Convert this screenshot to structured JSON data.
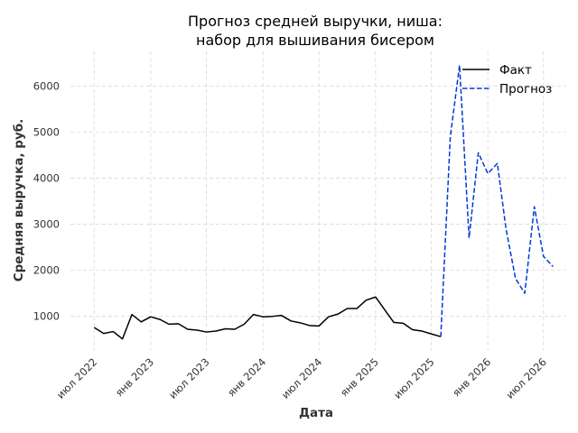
{
  "chart_data": {
    "type": "line",
    "title_line1": "Прогноз средней выручки, ниша:",
    "title_line2": "набор для вышивания бисером",
    "xlabel": "Дата",
    "ylabel": "Средняя выручка, руб.",
    "x_ticks": [
      {
        "date": "2022-07-01",
        "label": "июл 2022"
      },
      {
        "date": "2023-01-01",
        "label": "янв 2023"
      },
      {
        "date": "2023-07-01",
        "label": "июл 2023"
      },
      {
        "date": "2024-01-01",
        "label": "янв 2024"
      },
      {
        "date": "2024-07-01",
        "label": "июл 2024"
      },
      {
        "date": "2025-01-01",
        "label": "янв 2025"
      },
      {
        "date": "2025-07-01",
        "label": "июл 2025"
      },
      {
        "date": "2026-01-01",
        "label": "янв 2026"
      },
      {
        "date": "2026-07-01",
        "label": "июл 2026"
      }
    ],
    "y_ticks": [
      1000,
      2000,
      3000,
      4000,
      5000,
      6000
    ],
    "xlim": [
      "2022-04-15",
      "2026-09-10"
    ],
    "ylim": [
      250,
      6750
    ],
    "grid": true,
    "legend_position": "top-right",
    "series": [
      {
        "name": "Факт",
        "color": "#000000",
        "style": "solid",
        "points": [
          [
            "2022-07-01",
            760
          ],
          [
            "2022-08-01",
            630
          ],
          [
            "2022-09-01",
            670
          ],
          [
            "2022-10-01",
            510
          ],
          [
            "2022-11-01",
            1040
          ],
          [
            "2022-12-01",
            880
          ],
          [
            "2023-01-01",
            990
          ],
          [
            "2023-02-01",
            930
          ],
          [
            "2023-03-01",
            830
          ],
          [
            "2023-04-01",
            840
          ],
          [
            "2023-05-01",
            720
          ],
          [
            "2023-06-01",
            700
          ],
          [
            "2023-07-01",
            660
          ],
          [
            "2023-08-01",
            680
          ],
          [
            "2023-09-01",
            730
          ],
          [
            "2023-10-01",
            720
          ],
          [
            "2023-11-01",
            830
          ],
          [
            "2023-12-01",
            1040
          ],
          [
            "2024-01-01",
            990
          ],
          [
            "2024-02-01",
            1000
          ],
          [
            "2024-03-01",
            1020
          ],
          [
            "2024-04-01",
            900
          ],
          [
            "2024-05-01",
            860
          ],
          [
            "2024-06-01",
            800
          ],
          [
            "2024-07-01",
            790
          ],
          [
            "2024-08-01",
            990
          ],
          [
            "2024-09-01",
            1050
          ],
          [
            "2024-10-01",
            1170
          ],
          [
            "2024-11-01",
            1170
          ],
          [
            "2024-12-01",
            1350
          ],
          [
            "2025-01-01",
            1420
          ],
          [
            "2025-02-01",
            1130
          ],
          [
            "2025-03-01",
            870
          ],
          [
            "2025-04-01",
            850
          ],
          [
            "2025-05-01",
            710
          ],
          [
            "2025-06-01",
            680
          ],
          [
            "2025-07-01",
            620
          ],
          [
            "2025-08-01",
            560
          ]
        ]
      },
      {
        "name": "Прогноз",
        "color": "#0039d6",
        "style": "dashed",
        "points": [
          [
            "2025-08-01",
            560
          ],
          [
            "2025-09-01",
            4900
          ],
          [
            "2025-10-01",
            6450
          ],
          [
            "2025-11-01",
            2700
          ],
          [
            "2025-12-01",
            4550
          ],
          [
            "2026-01-01",
            4100
          ],
          [
            "2026-02-01",
            4320
          ],
          [
            "2026-03-01",
            2900
          ],
          [
            "2026-04-01",
            1820
          ],
          [
            "2026-05-01",
            1500
          ],
          [
            "2026-06-01",
            3380
          ],
          [
            "2026-07-01",
            2300
          ],
          [
            "2026-08-01",
            2080
          ]
        ]
      }
    ]
  }
}
